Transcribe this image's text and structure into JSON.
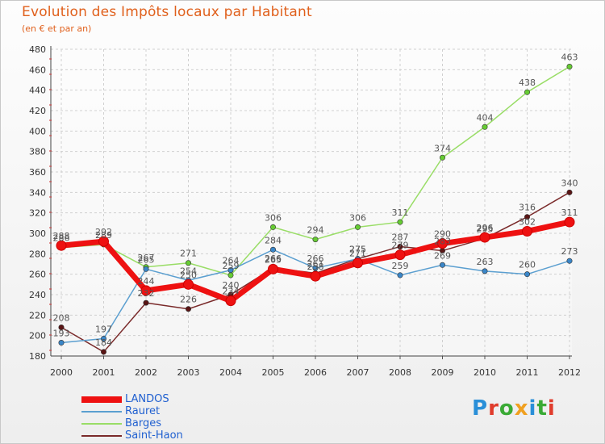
{
  "title": "Evolution des Impôts locaux par Habitant",
  "subtitle": "(en € et par an)",
  "logo": {
    "letters": [
      "P",
      "r",
      "o",
      "x",
      "i",
      "t",
      "i"
    ],
    "colors": [
      "#2a8fd8",
      "#e03c2c",
      "#3aaa35",
      "#f0a020",
      "#2a8fd8",
      "#3aaa35",
      "#e03c2c"
    ]
  },
  "chart_data": {
    "type": "line",
    "title": "Evolution des Impôts locaux par Habitant",
    "subtitle": "(en € et par an)",
    "xlabel": "",
    "ylabel": "",
    "categories": [
      "2000",
      "2001",
      "2002",
      "2003",
      "2004",
      "2005",
      "2006",
      "2007",
      "2008",
      "2009",
      "2010",
      "2011",
      "2012"
    ],
    "ylim": [
      180,
      480
    ],
    "yticks": [
      180,
      200,
      220,
      240,
      260,
      280,
      300,
      320,
      340,
      360,
      380,
      400,
      420,
      440,
      460,
      480
    ],
    "grid": true,
    "legend_position": "bottom-left",
    "series": [
      {
        "name": "LANDOS",
        "color": "#ee1111",
        "marker": "#ee1111",
        "values": [
          288,
          292,
          244,
          250,
          234,
          265,
          258,
          271,
          279,
          290,
          296,
          302,
          311
        ],
        "labels": [
          "288",
          "292",
          "244",
          "250",
          "234",
          "265",
          "258",
          "271",
          "279",
          "290",
          "296",
          "302",
          "311"
        ]
      },
      {
        "name": "Rauret",
        "color": "#5b9fd0",
        "marker": "#3a86c8",
        "values": [
          193,
          197,
          265,
          254,
          264,
          284,
          266,
          275,
          259,
          269,
          263,
          260,
          273
        ],
        "labels": [
          "193",
          "197",
          "265",
          "254",
          "264",
          "284",
          "266",
          "275",
          "259",
          "269",
          "263",
          "260",
          "273"
        ]
      },
      {
        "name": "Barges",
        "color": "#99dd66",
        "marker": "#66cc33",
        "values": [
          286,
          289,
          267,
          271,
          259,
          306,
          294,
          306,
          311,
          374,
          404,
          438,
          463
        ],
        "labels": [
          "286",
          "289",
          "267",
          "271",
          "259",
          "306",
          "294",
          "306",
          "311",
          "374",
          "404",
          "438",
          "463"
        ]
      },
      {
        "name": "Saint-Haon",
        "color": "#7a2a2a",
        "marker": "#5a1515",
        "values": [
          208,
          184,
          232,
          226,
          240,
          266,
          261,
          275,
          287,
          283,
          295,
          316,
          340
        ],
        "labels": [
          "208",
          "184",
          "232",
          "226",
          "240",
          "266",
          "261",
          "275",
          "287",
          "283",
          "295",
          "316",
          "340"
        ]
      }
    ]
  }
}
